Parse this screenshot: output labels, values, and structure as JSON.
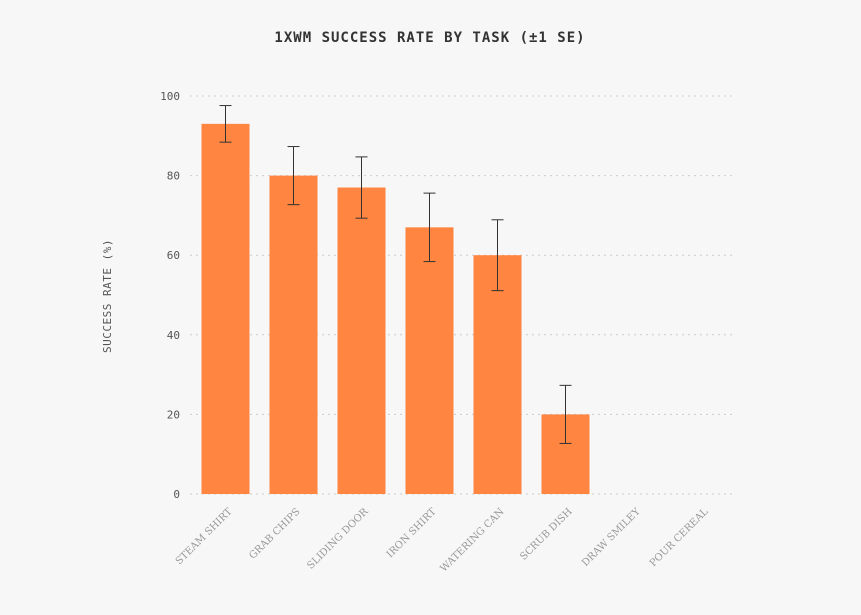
{
  "chart_data": {
    "type": "bar",
    "title": "1XWM SUCCESS RATE BY TASK (±1 SE)",
    "xlabel": "",
    "ylabel": "SUCCESS RATE (%)",
    "ylim": [
      0,
      100
    ],
    "yticks": [
      0,
      20,
      40,
      60,
      80,
      100
    ],
    "categories": [
      "STEAM SHIRT",
      "GRAB CHIPS",
      "SLIDING DOOR",
      "IRON SHIRT",
      "WATERING CAN",
      "SCRUB DISH",
      "DRAW SMILEY",
      "POUR CEREAL"
    ],
    "values": [
      93,
      80,
      77,
      67,
      60,
      20,
      0,
      0
    ],
    "errors": [
      4.6,
      7.3,
      7.7,
      8.6,
      8.9,
      7.3,
      0,
      0
    ],
    "grid": true,
    "bar_color": "#ff8540",
    "error_color": "#333333"
  }
}
